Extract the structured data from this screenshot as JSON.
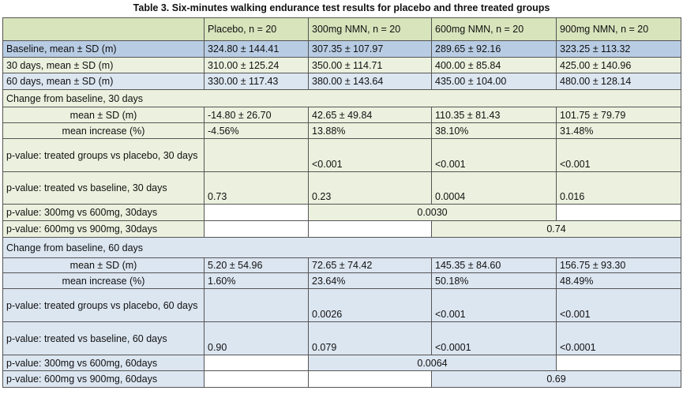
{
  "title": "Table 3. Six-minutes walking endurance test results for placebo and three treated groups",
  "columns": [
    "",
    "Placebo, n = 20",
    "300mg NMN, n = 20",
    "600mg NMN, n = 20",
    "900mg NMN, n = 20"
  ],
  "colors": {
    "header": "#d8e4bc",
    "baseline": "#b8cce4",
    "green": "#ebf1de",
    "blue": "#dce6f1"
  },
  "rows_top": [
    {
      "label": "Baseline, mean ± SD (m)",
      "values": [
        "324.80 ± 144.41",
        "307.35 ± 107.97",
        "289.65 ± 92.16",
        "323.25 ± 113.32"
      ]
    },
    {
      "label": "30 days, mean ± SD (m)",
      "values": [
        "310.00 ± 125.24",
        "350.00 ± 114.71",
        "400.00 ± 85.84",
        "425.00 ± 140.96"
      ]
    },
    {
      "label": "60 days, mean ± SD (m)",
      "values": [
        "330.00 ± 117.43",
        "380.00 ± 143.64",
        "435.00 ± 104.00",
        "480.00 ± 128.14"
      ]
    }
  ],
  "section30": {
    "heading": "Change from baseline, 30 days",
    "mean": {
      "label": "mean ± SD (m)",
      "values": [
        "-14.80 ± 26.70",
        "42.65 ± 49.84",
        "110.35 ± 81.43",
        "101.75 ± 79.79"
      ]
    },
    "increase": {
      "label": "mean increase (%)",
      "values": [
        "-4.56%",
        "13.88%",
        "38.10%",
        "31.48%"
      ]
    },
    "p_vs_placebo": {
      "label": "p-value: treated groups vs placebo, 30 days",
      "values": [
        "",
        "<0.001",
        "<0.001",
        "<0.001"
      ]
    },
    "p_vs_baseline": {
      "label": "p-value: treated vs baseline, 30 days",
      "values": [
        "0.73",
        "0.23",
        "0.0004",
        "0.016"
      ]
    },
    "p_300_600": {
      "label": "p-value: 300mg vs 600mg, 30days",
      "value": "0.0030"
    },
    "p_600_900": {
      "label": "p-value: 600mg vs 900mg, 30days",
      "value": "0.74"
    }
  },
  "section60": {
    "heading": "Change from baseline, 60 days",
    "mean": {
      "label": "mean ± SD (m)",
      "values": [
        "5.20 ± 54.96",
        "72.65 ± 74.42",
        "145.35 ± 84.60",
        "156.75 ± 93.30"
      ]
    },
    "increase": {
      "label": "mean increase (%)",
      "values": [
        "1.60%",
        "23.64%",
        "50.18%",
        "48.49%"
      ]
    },
    "p_vs_placebo": {
      "label": "p-value: treated groups vs placebo, 60 days",
      "values": [
        "",
        "0.0026",
        "<0.001",
        "<0.001"
      ]
    },
    "p_vs_baseline": {
      "label": "p-value: treated vs baseline, 60 days",
      "values": [
        "0.90",
        "0.079",
        "<0.0001",
        "<0.0001"
      ]
    },
    "p_300_600": {
      "label": "p-value: 300mg vs 600mg, 60days",
      "value": "0.0064"
    },
    "p_600_900": {
      "label": "p-value: 600mg vs 900mg, 60days",
      "value": "0.69"
    }
  }
}
